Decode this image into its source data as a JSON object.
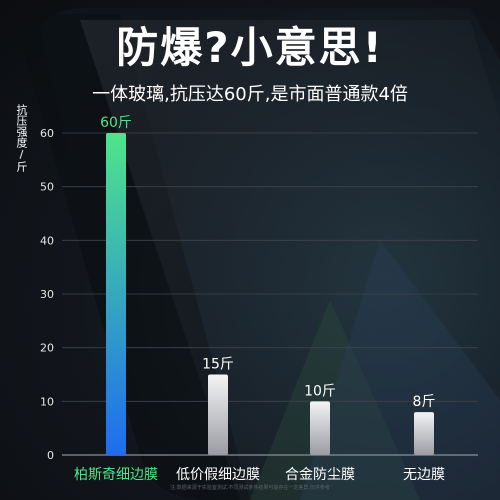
{
  "header": {
    "title": "防爆?小意思!",
    "subtitle": "一体玻璃,抗压达60斤,是市面普通款4倍"
  },
  "footnote": "注:数据来源于实验室测试,不同测试条件结果可能存在一定差异,仅供参考",
  "colors": {
    "highlight_top": "#4ee58a",
    "highlight_bottom": "#1e6cf0",
    "other_top": "#f4f4f6",
    "other_bottom": "#9a9ca2",
    "highlight_label": "#4ee58a"
  },
  "chart_data": {
    "type": "bar",
    "ylabel": "抗压强度/斤",
    "categories": [
      "柏斯奇细边膜",
      "低价假细边膜",
      "合金防尘膜",
      "无边膜"
    ],
    "values": [
      60,
      15,
      10,
      8
    ],
    "data_labels": [
      "60斤",
      "15斤",
      "10斤",
      "8斤"
    ],
    "yticks": [
      "0",
      "10",
      "20",
      "30",
      "40",
      "50",
      "60"
    ],
    "ylim": [
      0,
      60
    ],
    "grid": true,
    "highlight_index": 0
  }
}
